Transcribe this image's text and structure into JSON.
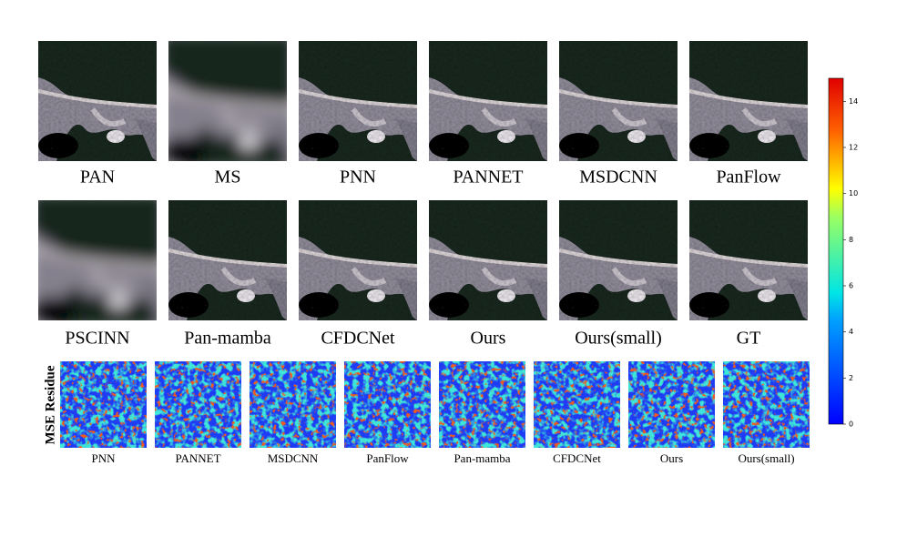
{
  "figure": {
    "row1_labels": [
      "PAN",
      "MS",
      "PNN",
      "PANNET",
      "MSDCNN",
      "PanFlow"
    ],
    "row2_labels": [
      "PSCINN",
      "Pan-mamba",
      "CFDCNet",
      "Ours",
      "Ours(small)",
      "GT"
    ],
    "residue_title": "MSE Residue",
    "residue_labels": [
      "PNN",
      "PANNET",
      "MSDCNN",
      "PanFlow",
      "Pan-mamba",
      "CFDCNet",
      "Ours",
      "Ours(small)"
    ],
    "colorbar": {
      "lim": [
        0,
        15
      ],
      "ticks": [
        0,
        2,
        4,
        6,
        8,
        10,
        12,
        14
      ]
    }
  }
}
